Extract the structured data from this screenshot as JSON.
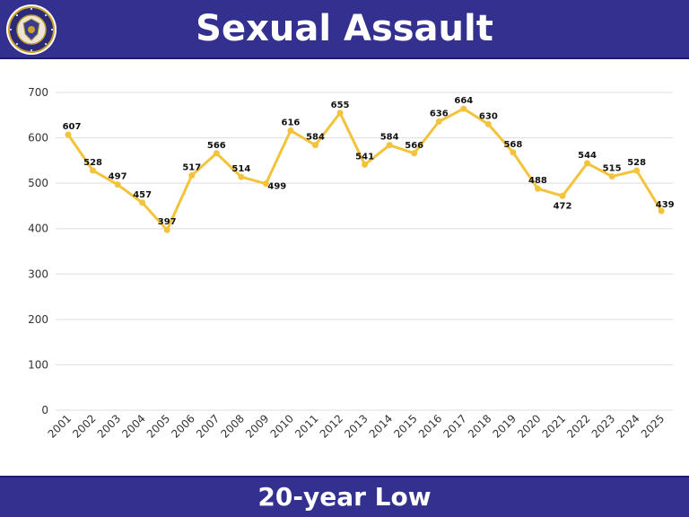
{
  "header": {
    "title": "Sexual Assault"
  },
  "footer": {
    "text": "20-year Low"
  },
  "colors": {
    "banner": "#33308f",
    "line": "#f2c33b",
    "grid": "#dddddd"
  },
  "icons": {
    "logo": "police-seal-icon"
  },
  "chart_data": {
    "type": "line",
    "title": "",
    "xlabel": "",
    "ylabel": "",
    "ylim": [
      0,
      700
    ],
    "yticks": [
      0,
      100,
      200,
      300,
      400,
      500,
      600,
      700
    ],
    "grid": true,
    "categories": [
      "2001",
      "2002",
      "2003",
      "2004",
      "2005",
      "2006",
      "2007",
      "2008",
      "2009",
      "2010",
      "2011",
      "2012",
      "2013",
      "2014",
      "2015",
      "2016",
      "2017",
      "2018",
      "2019",
      "2020",
      "2021",
      "2022",
      "2023",
      "2024",
      "2025"
    ],
    "series": [
      {
        "values": [
          607,
          528,
          497,
          457,
          397,
          517,
          566,
          514,
          499,
          616,
          584,
          655,
          541,
          584,
          566,
          636,
          664,
          630,
          568,
          488,
          472,
          544,
          515,
          528,
          439
        ]
      }
    ]
  }
}
